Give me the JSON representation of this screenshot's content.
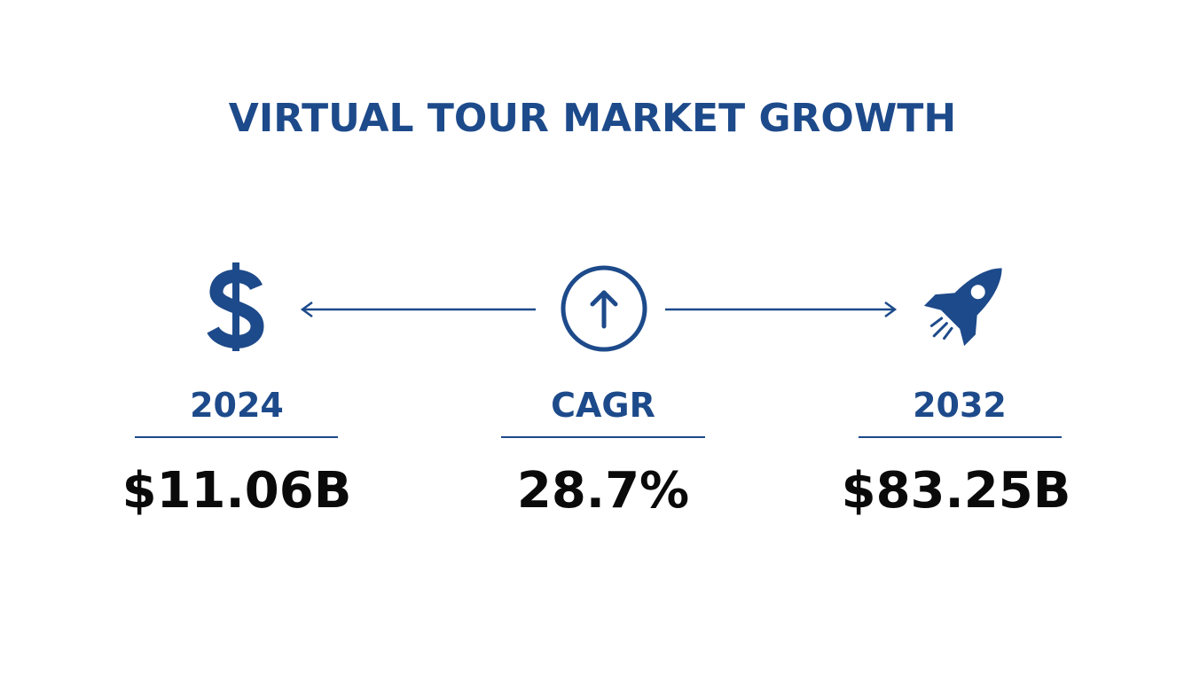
{
  "title": "VIRTUAL TOUR MARKET GROWTH",
  "metrics": [
    {
      "label": "2024",
      "value": "$11.06B"
    },
    {
      "label": "CAGR",
      "value": "28.7%"
    },
    {
      "label": "2032",
      "value": "$83.25B"
    }
  ]
}
